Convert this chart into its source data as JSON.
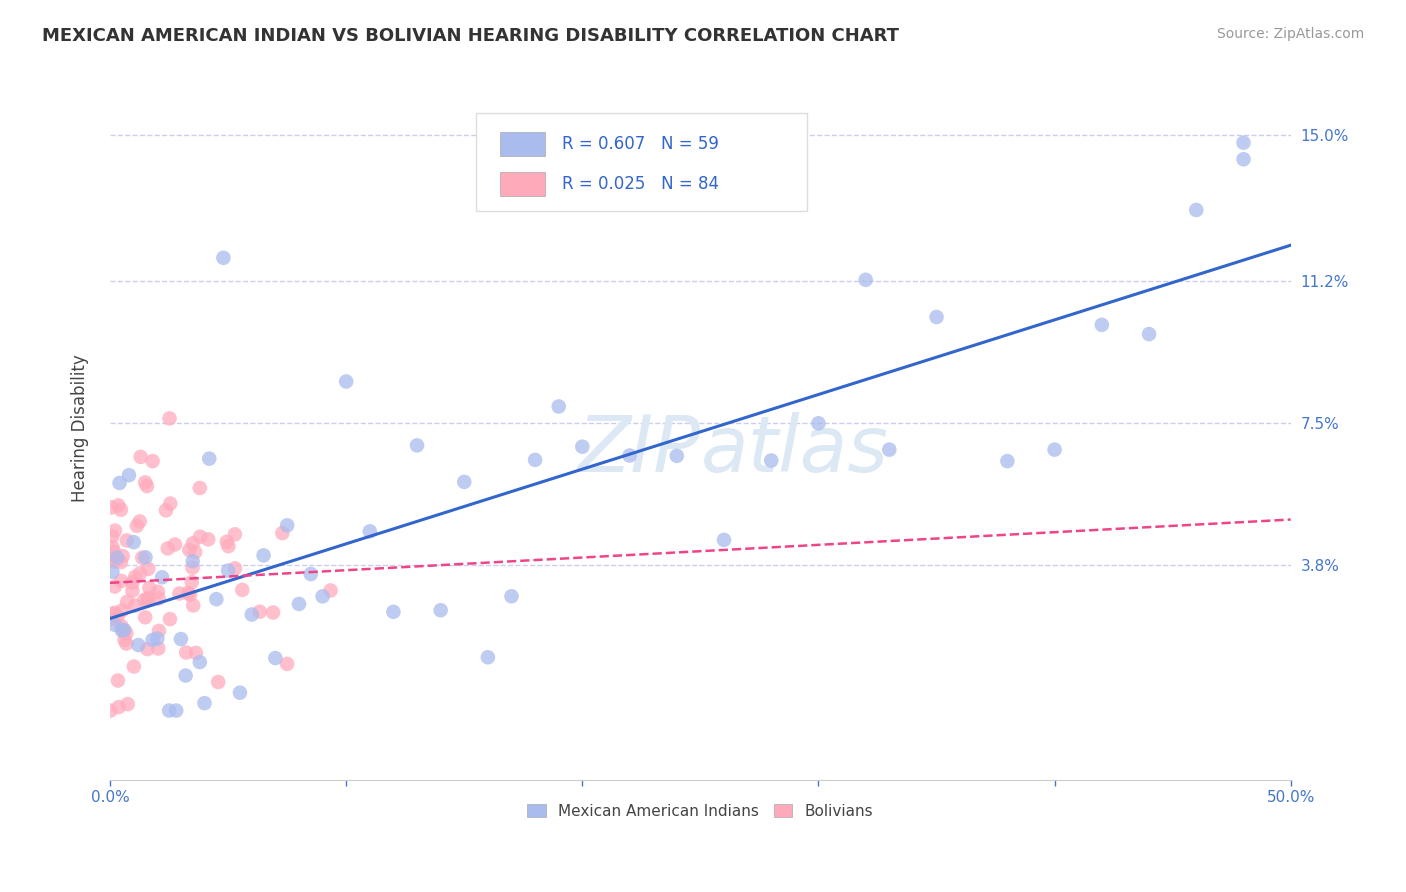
{
  "title": "MEXICAN AMERICAN INDIAN VS BOLIVIAN HEARING DISABILITY CORRELATION CHART",
  "source": "Source: ZipAtlas.com",
  "ylabel": "Hearing Disability",
  "xlim": [
    0.0,
    0.5
  ],
  "ylim": [
    -0.018,
    0.165
  ],
  "yticks": [
    0.038,
    0.075,
    0.112,
    0.15
  ],
  "yticklabels": [
    "3.8%",
    "7.5%",
    "11.2%",
    "15.0%"
  ],
  "grid_color": "#ccccee",
  "background_color": "#ffffff",
  "blue_color": "#aabbee",
  "pink_color": "#ffaabb",
  "blue_line_color": "#3366cc",
  "pink_line_color": "#ee4488",
  "legend_label_blue": "Mexican American Indians",
  "legend_label_pink": "Bolivians",
  "title_fontsize": 13,
  "axis_label_fontsize": 12,
  "tick_fontsize": 11,
  "source_fontsize": 10,
  "watermark": "ZIPatlas"
}
